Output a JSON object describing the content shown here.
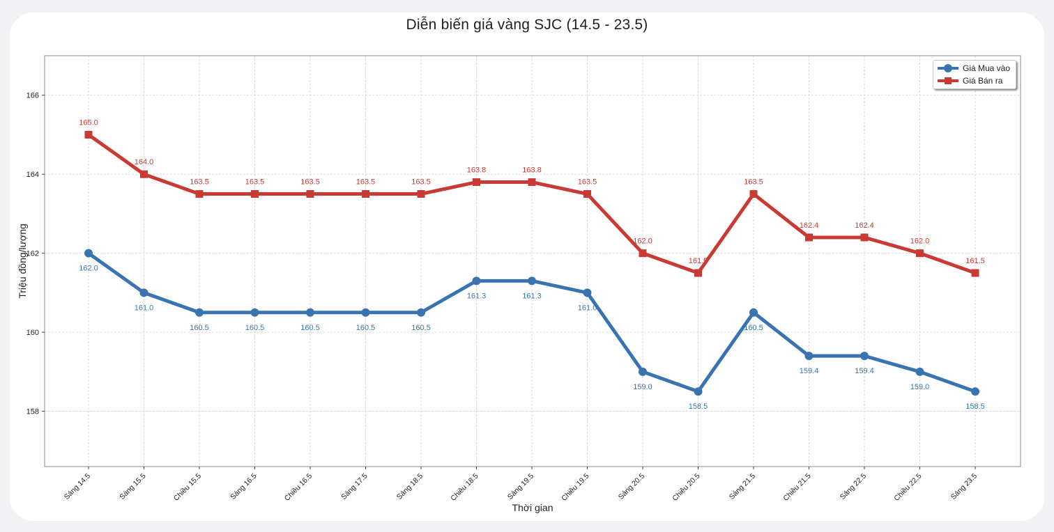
{
  "chart_data": {
    "type": "line",
    "title": "Diễn biến giá vàng SJC (14.5 - 23.5)",
    "xlabel": "Thời gian",
    "ylabel": "Triệu đồng/lượng",
    "ylim": [
      156.6,
      167.0
    ],
    "yticks": [
      "158",
      "160",
      "162",
      "164",
      "166"
    ],
    "grid": true,
    "legend_position": "top-right",
    "categories": [
      "Sáng 14.5",
      "Sáng 15.5",
      "Chiều 15.5",
      "Sáng 16.5",
      "Chiều 16.5",
      "Sáng 17.5",
      "Sáng 18.5",
      "Chiều 18.5",
      "Sáng 19.5",
      "Chiều 19.5",
      "Sáng 20.5",
      "Chiều 20.5",
      "Sáng 21.5",
      "Chiều 21.5",
      "Sáng 22.5",
      "Chiều 22.5",
      "Sáng 23.5"
    ],
    "series": [
      {
        "name": "Giá Mua vào",
        "color": "#3a74b0",
        "marker": "circle",
        "values": [
          162.0,
          161.0,
          160.5,
          160.5,
          160.5,
          160.5,
          160.5,
          161.3,
          161.3,
          161.0,
          159.0,
          158.5,
          160.5,
          159.4,
          159.4,
          159.0,
          158.5
        ],
        "labels": [
          "162.0",
          "161.0",
          "160.5",
          "160.5",
          "160.5",
          "160.5",
          "160.5",
          "161.3",
          "161.3",
          "161.0",
          "159.0",
          "158.5",
          "160.5",
          "159.4",
          "159.4",
          "159.0",
          "158.5"
        ]
      },
      {
        "name": "Giá Bán ra",
        "color": "#c93a34",
        "marker": "square",
        "values": [
          165.0,
          164.0,
          163.5,
          163.5,
          163.5,
          163.5,
          163.5,
          163.8,
          163.8,
          163.5,
          162.0,
          161.5,
          163.5,
          162.4,
          162.4,
          162.0,
          161.5
        ],
        "labels": [
          "165.0",
          "164.0",
          "163.5",
          "163.5",
          "163.5",
          "163.5",
          "163.5",
          "163.8",
          "163.8",
          "163.5",
          "162.0",
          "161.5",
          "163.5",
          "162.4",
          "162.4",
          "162.0",
          "161.5"
        ]
      }
    ]
  }
}
